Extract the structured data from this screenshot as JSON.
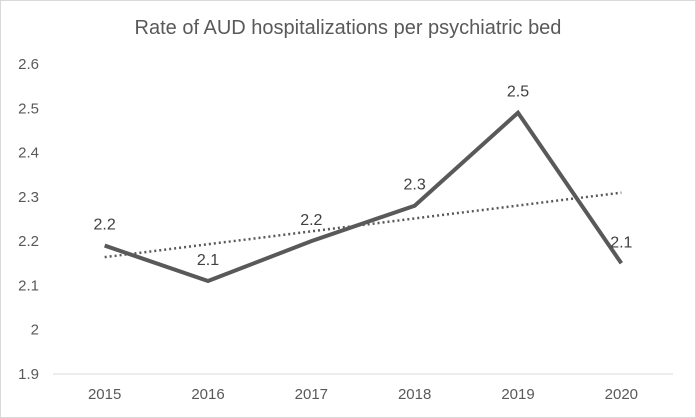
{
  "chart_data": {
    "type": "line",
    "title": "Rate of AUD hospitalizations per psychiatric bed",
    "xlabel": "",
    "ylabel": "",
    "categories": [
      "2015",
      "2016",
      "2017",
      "2018",
      "2019",
      "2020"
    ],
    "series": [
      {
        "values": [
          2.19,
          2.11,
          2.2,
          2.28,
          2.49,
          2.15
        ],
        "data_labels": [
          "2.2",
          "2.1",
          "2.2",
          "2.3",
          "2.5",
          "2.1"
        ],
        "color": "#595959"
      }
    ],
    "trendline": {
      "type": "linear",
      "style": "dotted",
      "color": "#595959"
    },
    "ylim": [
      1.9,
      2.6
    ],
    "yticks": [
      1.9,
      2.0,
      2.1,
      2.2,
      2.3,
      2.4,
      2.5,
      2.6
    ],
    "ytick_labels": [
      "1.9",
      "2",
      "2.1",
      "2.2",
      "2.3",
      "2.4",
      "2.5",
      "2.6"
    ],
    "grid": false,
    "legend": "none"
  }
}
